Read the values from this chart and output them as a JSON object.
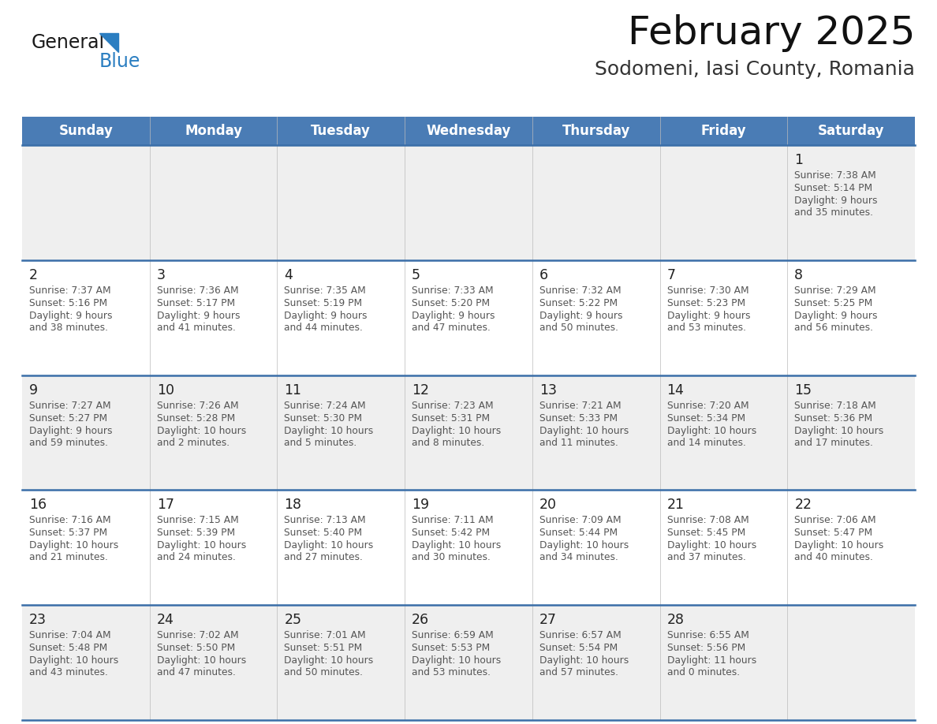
{
  "title": "February 2025",
  "subtitle": "Sodomeni, Iasi County, Romania",
  "header_bg": "#4a7cb5",
  "header_text": "#ffffff",
  "row_bg_light": "#efefef",
  "row_bg_white": "#ffffff",
  "separator_color": "#3a6ea8",
  "day_number_color": "#222222",
  "info_text_color": "#555555",
  "days_of_week": [
    "Sunday",
    "Monday",
    "Tuesday",
    "Wednesday",
    "Thursday",
    "Friday",
    "Saturday"
  ],
  "logo_general_color": "#1a1a1a",
  "logo_blue_color": "#2b7ec1",
  "logo_triangle_color": "#2b7ec1",
  "calendar_data": [
    [
      null,
      null,
      null,
      null,
      null,
      null,
      {
        "day": "1",
        "sunrise": "7:38 AM",
        "sunset": "5:14 PM",
        "daylight": "9 hours\nand 35 minutes."
      }
    ],
    [
      {
        "day": "2",
        "sunrise": "7:37 AM",
        "sunset": "5:16 PM",
        "daylight": "9 hours\nand 38 minutes."
      },
      {
        "day": "3",
        "sunrise": "7:36 AM",
        "sunset": "5:17 PM",
        "daylight": "9 hours\nand 41 minutes."
      },
      {
        "day": "4",
        "sunrise": "7:35 AM",
        "sunset": "5:19 PM",
        "daylight": "9 hours\nand 44 minutes."
      },
      {
        "day": "5",
        "sunrise": "7:33 AM",
        "sunset": "5:20 PM",
        "daylight": "9 hours\nand 47 minutes."
      },
      {
        "day": "6",
        "sunrise": "7:32 AM",
        "sunset": "5:22 PM",
        "daylight": "9 hours\nand 50 minutes."
      },
      {
        "day": "7",
        "sunrise": "7:30 AM",
        "sunset": "5:23 PM",
        "daylight": "9 hours\nand 53 minutes."
      },
      {
        "day": "8",
        "sunrise": "7:29 AM",
        "sunset": "5:25 PM",
        "daylight": "9 hours\nand 56 minutes."
      }
    ],
    [
      {
        "day": "9",
        "sunrise": "7:27 AM",
        "sunset": "5:27 PM",
        "daylight": "9 hours\nand 59 minutes."
      },
      {
        "day": "10",
        "sunrise": "7:26 AM",
        "sunset": "5:28 PM",
        "daylight": "10 hours\nand 2 minutes."
      },
      {
        "day": "11",
        "sunrise": "7:24 AM",
        "sunset": "5:30 PM",
        "daylight": "10 hours\nand 5 minutes."
      },
      {
        "day": "12",
        "sunrise": "7:23 AM",
        "sunset": "5:31 PM",
        "daylight": "10 hours\nand 8 minutes."
      },
      {
        "day": "13",
        "sunrise": "7:21 AM",
        "sunset": "5:33 PM",
        "daylight": "10 hours\nand 11 minutes."
      },
      {
        "day": "14",
        "sunrise": "7:20 AM",
        "sunset": "5:34 PM",
        "daylight": "10 hours\nand 14 minutes."
      },
      {
        "day": "15",
        "sunrise": "7:18 AM",
        "sunset": "5:36 PM",
        "daylight": "10 hours\nand 17 minutes."
      }
    ],
    [
      {
        "day": "16",
        "sunrise": "7:16 AM",
        "sunset": "5:37 PM",
        "daylight": "10 hours\nand 21 minutes."
      },
      {
        "day": "17",
        "sunrise": "7:15 AM",
        "sunset": "5:39 PM",
        "daylight": "10 hours\nand 24 minutes."
      },
      {
        "day": "18",
        "sunrise": "7:13 AM",
        "sunset": "5:40 PM",
        "daylight": "10 hours\nand 27 minutes."
      },
      {
        "day": "19",
        "sunrise": "7:11 AM",
        "sunset": "5:42 PM",
        "daylight": "10 hours\nand 30 minutes."
      },
      {
        "day": "20",
        "sunrise": "7:09 AM",
        "sunset": "5:44 PM",
        "daylight": "10 hours\nand 34 minutes."
      },
      {
        "day": "21",
        "sunrise": "7:08 AM",
        "sunset": "5:45 PM",
        "daylight": "10 hours\nand 37 minutes."
      },
      {
        "day": "22",
        "sunrise": "7:06 AM",
        "sunset": "5:47 PM",
        "daylight": "10 hours\nand 40 minutes."
      }
    ],
    [
      {
        "day": "23",
        "sunrise": "7:04 AM",
        "sunset": "5:48 PM",
        "daylight": "10 hours\nand 43 minutes."
      },
      {
        "day": "24",
        "sunrise": "7:02 AM",
        "sunset": "5:50 PM",
        "daylight": "10 hours\nand 47 minutes."
      },
      {
        "day": "25",
        "sunrise": "7:01 AM",
        "sunset": "5:51 PM",
        "daylight": "10 hours\nand 50 minutes."
      },
      {
        "day": "26",
        "sunrise": "6:59 AM",
        "sunset": "5:53 PM",
        "daylight": "10 hours\nand 53 minutes."
      },
      {
        "day": "27",
        "sunrise": "6:57 AM",
        "sunset": "5:54 PM",
        "daylight": "10 hours\nand 57 minutes."
      },
      {
        "day": "28",
        "sunrise": "6:55 AM",
        "sunset": "5:56 PM",
        "daylight": "11 hours\nand 0 minutes."
      },
      null
    ]
  ]
}
